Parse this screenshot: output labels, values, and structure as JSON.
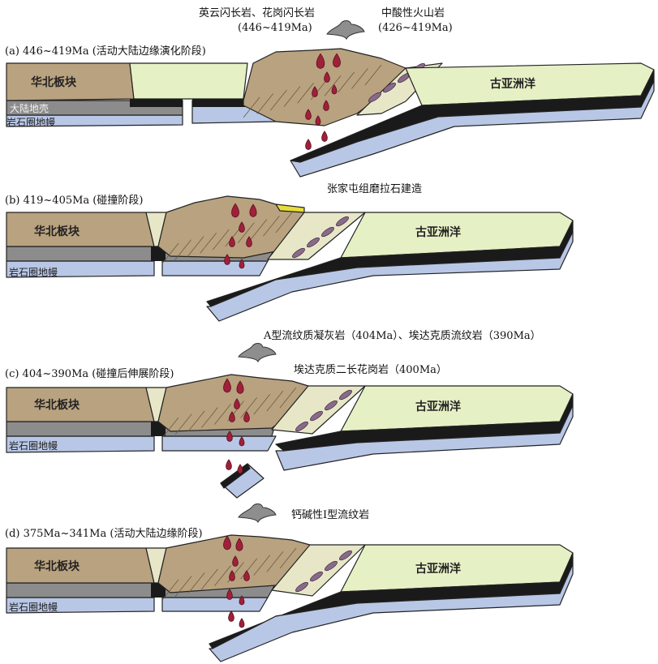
{
  "colors": {
    "continent": "#b9a27f",
    "continent_dark": "#8f7b5c",
    "ocean": "#e5f0c5",
    "crust_dark": "#1a1a1a",
    "mantle": "#b9c7e6",
    "lower_crust": "#8c8c8c",
    "magma": "#a0203a",
    "lens": "#8a6a8a",
    "basin": "#e7e7c8",
    "molasse": "#e8dc3a",
    "volcano_ash": "#8e8e8e"
  },
  "panels": [
    {
      "id": "a",
      "stage": "(a) 446~419Ma (活动大陆边缘演化阶段)",
      "block": "华北板块",
      "ocean": "古亚洲洋",
      "crust": "大陆地壳",
      "mantle": "岩石圈地幔",
      "annotations": [
        {
          "text": "英云闪长岩、花岗闪长岩"
        },
        {
          "text": "(446~419Ma)"
        },
        {
          "text": "中酸性火山岩"
        },
        {
          "text": "(426~419Ma)"
        }
      ]
    },
    {
      "id": "b",
      "stage": "(b) 419~405Ma (碰撞阶段)",
      "block": "华北板块",
      "ocean": "古亚洲洋",
      "mantle": "岩石圈地幔",
      "annotations": [
        {
          "text": "张家屯组磨拉石建造"
        }
      ]
    },
    {
      "id": "c",
      "stage": "(c) 404~390Ma (碰撞后伸展阶段)",
      "block": "华北板块",
      "ocean": "古亚洲洋",
      "mantle": "岩石圈地幔",
      "annotations": [
        {
          "text": "A型流纹质凝灰岩（404Ma）、埃达克质流纹岩（390Ma）"
        },
        {
          "text": "埃达克质二长花岗岩（400Ma）"
        }
      ]
    },
    {
      "id": "d",
      "stage": "(d) 375Ma~341Ma (活动大陆边缘阶段)",
      "block": "华北板块",
      "ocean": "古亚洲洋",
      "mantle": "岩石圈地幔",
      "annotations": [
        {
          "text": "钙碱性I型流纹岩"
        }
      ]
    }
  ]
}
